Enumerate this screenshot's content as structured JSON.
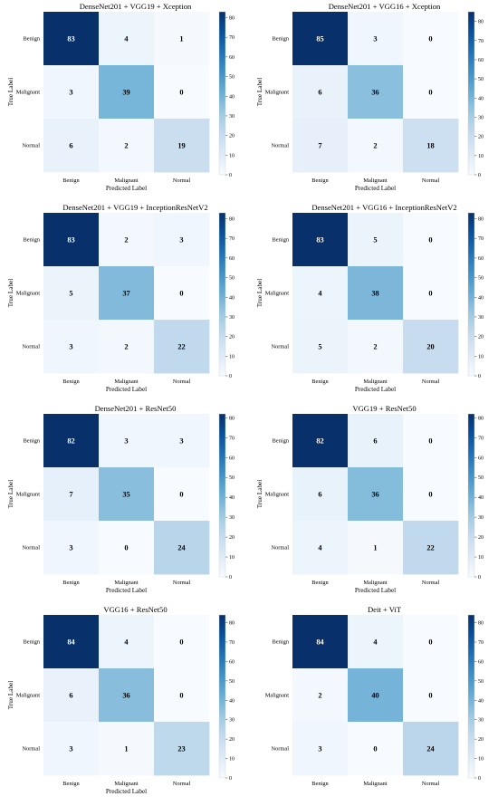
{
  "chart_data": [
    {
      "type": "heatmap",
      "title": "DenseNet201 + VGG19 + Xception",
      "xlabel": "Predicted Label",
      "ylabel": "True Label",
      "x_categories": [
        "Benign",
        "Malignant",
        "Normal"
      ],
      "y_categories": [
        "Benign",
        "Malignant",
        "Normal"
      ],
      "values": [
        [
          83,
          4,
          1
        ],
        [
          3,
          39,
          0
        ],
        [
          6,
          2,
          19
        ]
      ],
      "colorbar": {
        "range": [
          0,
          83
        ],
        "ticks": [
          0,
          10,
          20,
          30,
          40,
          50,
          60,
          70,
          80
        ]
      }
    },
    {
      "type": "heatmap",
      "title": "DenseNet201 + VGG16 + Xception",
      "xlabel": "Predicted Label",
      "ylabel": "True Label",
      "x_categories": [
        "Benign",
        "Malignant",
        "Normal"
      ],
      "y_categories": [
        "Benign",
        "Malignant",
        "Normal"
      ],
      "values": [
        [
          85,
          3,
          0
        ],
        [
          6,
          36,
          0
        ],
        [
          7,
          2,
          18
        ]
      ],
      "colorbar": {
        "range": [
          0,
          85
        ],
        "ticks": [
          0,
          10,
          20,
          30,
          40,
          50,
          60,
          70,
          80
        ]
      }
    },
    {
      "type": "heatmap",
      "title": "DenseNet201 + VGG19 + InceptionResNetV2",
      "xlabel": "Predicted Label",
      "ylabel": "True Label",
      "x_categories": [
        "Benign",
        "Malignant",
        "Normal"
      ],
      "y_categories": [
        "Benign",
        "Malignant",
        "Normal"
      ],
      "values": [
        [
          83,
          2,
          3
        ],
        [
          5,
          37,
          0
        ],
        [
          3,
          2,
          22
        ]
      ],
      "colorbar": {
        "range": [
          0,
          83
        ],
        "ticks": [
          0,
          10,
          20,
          30,
          40,
          50,
          60,
          70,
          80
        ]
      }
    },
    {
      "type": "heatmap",
      "title": "DenseNet201 + VGG16 + InceptionResNetV2",
      "xlabel": "Predicted Label",
      "ylabel": "True Label",
      "x_categories": [
        "Benign",
        "Malignant",
        "Normal"
      ],
      "y_categories": [
        "Benign",
        "Malignant",
        "Normal"
      ],
      "values": [
        [
          83,
          5,
          0
        ],
        [
          4,
          38,
          0
        ],
        [
          5,
          2,
          20
        ]
      ],
      "colorbar": {
        "range": [
          0,
          83
        ],
        "ticks": [
          0,
          10,
          20,
          30,
          40,
          50,
          60,
          70,
          80
        ]
      }
    },
    {
      "type": "heatmap",
      "title": "DenseNet201 + ResNet50",
      "xlabel": "Predicted Label",
      "ylabel": "True Label",
      "x_categories": [
        "Benign",
        "Malignant",
        "Normal"
      ],
      "y_categories": [
        "Benign",
        "Malignant",
        "Normal"
      ],
      "values": [
        [
          82,
          3,
          3
        ],
        [
          7,
          35,
          0
        ],
        [
          3,
          0,
          24
        ]
      ],
      "colorbar": {
        "range": [
          0,
          82
        ],
        "ticks": [
          0,
          10,
          20,
          30,
          40,
          50,
          60,
          70,
          80
        ]
      }
    },
    {
      "type": "heatmap",
      "title": "VGG19 + ResNet50",
      "xlabel": "Predicted Label",
      "ylabel": "True Label",
      "x_categories": [
        "Benign",
        "Malignant",
        "Normal"
      ],
      "y_categories": [
        "Benign",
        "Malignant",
        "Normal"
      ],
      "values": [
        [
          82,
          6,
          0
        ],
        [
          6,
          36,
          0
        ],
        [
          4,
          1,
          22
        ]
      ],
      "colorbar": {
        "range": [
          0,
          82
        ],
        "ticks": [
          0,
          10,
          20,
          30,
          40,
          50,
          60,
          70,
          80
        ]
      }
    },
    {
      "type": "heatmap",
      "title": "VGG16 + ResNet50",
      "xlabel": "Predicted Label",
      "ylabel": "True Label",
      "x_categories": [
        "Benign",
        "Malignant",
        "Normal"
      ],
      "y_categories": [
        "Benign",
        "Malignant",
        "Normal"
      ],
      "values": [
        [
          84,
          4,
          0
        ],
        [
          6,
          36,
          0
        ],
        [
          3,
          1,
          23
        ]
      ],
      "colorbar": {
        "range": [
          0,
          84
        ],
        "ticks": [
          0,
          10,
          20,
          30,
          40,
          50,
          60,
          70,
          80
        ]
      }
    },
    {
      "type": "heatmap",
      "title": "Deit + ViT",
      "xlabel": "",
      "ylabel": "",
      "x_categories": [
        "Benign",
        "Malignant",
        "Normal"
      ],
      "y_categories": [
        "Benign",
        "Malignant",
        "Normal"
      ],
      "values": [
        [
          84,
          4,
          0
        ],
        [
          2,
          40,
          0
        ],
        [
          3,
          0,
          24
        ]
      ],
      "colorbar": {
        "range": [
          0,
          84
        ],
        "ticks": [
          0,
          10,
          20,
          30,
          40,
          50,
          60,
          70,
          80
        ]
      }
    }
  ],
  "colors": {
    "colormap": "Blues",
    "low": "#f7fbff",
    "high": "#08306b",
    "text_on_light": "#000000"
  }
}
